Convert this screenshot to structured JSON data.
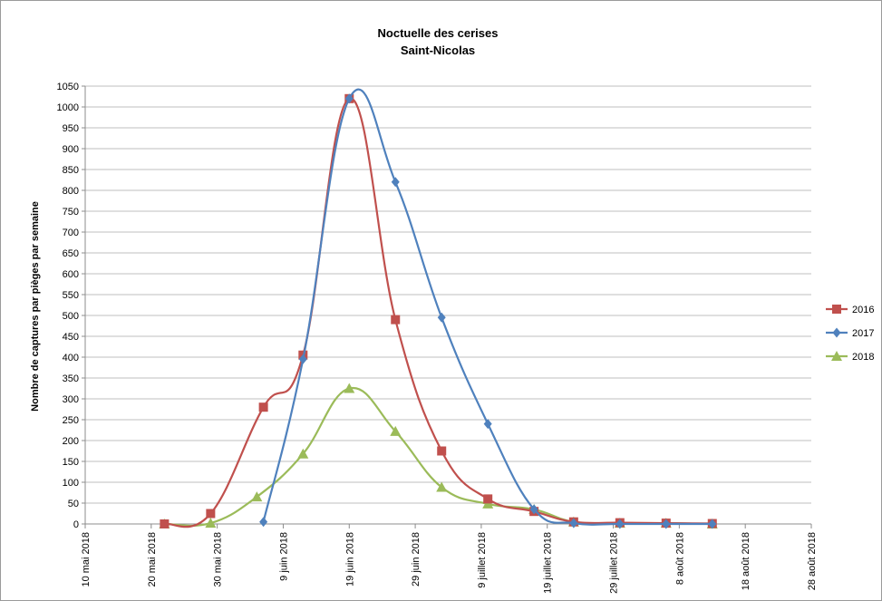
{
  "chart_data": {
    "type": "line",
    "title": "Noctuelle des cerises",
    "subtitle": "Saint-Nicolas",
    "ylabel": "Nombre de captures par pièges par semaine",
    "xlabel": "",
    "ylim": [
      0,
      1050
    ],
    "ytick_step": 50,
    "grid": true,
    "legend_position": "right",
    "x_tick_labels": [
      "10 mai 2018",
      "20 mai 2018",
      "30 mai 2018",
      "9 juin 2018",
      "19 juin 2018",
      "29 juin 2018",
      "9 juillet 2018",
      "19 juillet 2018",
      "29 juillet 2018",
      "8 août 2018",
      "18 août 2018",
      "28 août 2018"
    ],
    "x_tick_days": [
      0,
      10,
      20,
      30,
      40,
      50,
      60,
      70,
      80,
      90,
      100,
      110
    ],
    "series": [
      {
        "name": "2016",
        "color": "#c0504d",
        "marker": "square",
        "points": [
          [
            12,
            0
          ],
          [
            19,
            25
          ],
          [
            27,
            280
          ],
          [
            33,
            405
          ],
          [
            40,
            1020
          ],
          [
            47,
            490
          ],
          [
            54,
            175
          ],
          [
            61,
            60
          ],
          [
            68,
            30
          ],
          [
            74,
            5
          ],
          [
            81,
            3
          ],
          [
            88,
            2
          ],
          [
            95,
            1
          ]
        ]
      },
      {
        "name": "2017",
        "color": "#4f81bd",
        "marker": "diamond",
        "points": [
          [
            27,
            5
          ],
          [
            33,
            395
          ],
          [
            40,
            1020
          ],
          [
            47,
            820
          ],
          [
            54,
            495
          ],
          [
            61,
            240
          ],
          [
            68,
            35
          ],
          [
            74,
            2
          ],
          [
            81,
            0
          ],
          [
            88,
            0
          ],
          [
            95,
            0
          ]
        ]
      },
      {
        "name": "2018",
        "color": "#9bbb59",
        "marker": "triangle",
        "points": [
          [
            12,
            0
          ],
          [
            19,
            2
          ],
          [
            26,
            65
          ],
          [
            33,
            168
          ],
          [
            40,
            325
          ],
          [
            47,
            222
          ],
          [
            54,
            88
          ],
          [
            61,
            48
          ],
          [
            68,
            35
          ],
          [
            74,
            5
          ],
          [
            81,
            2
          ],
          [
            88,
            2
          ],
          [
            95,
            0
          ]
        ]
      }
    ]
  }
}
